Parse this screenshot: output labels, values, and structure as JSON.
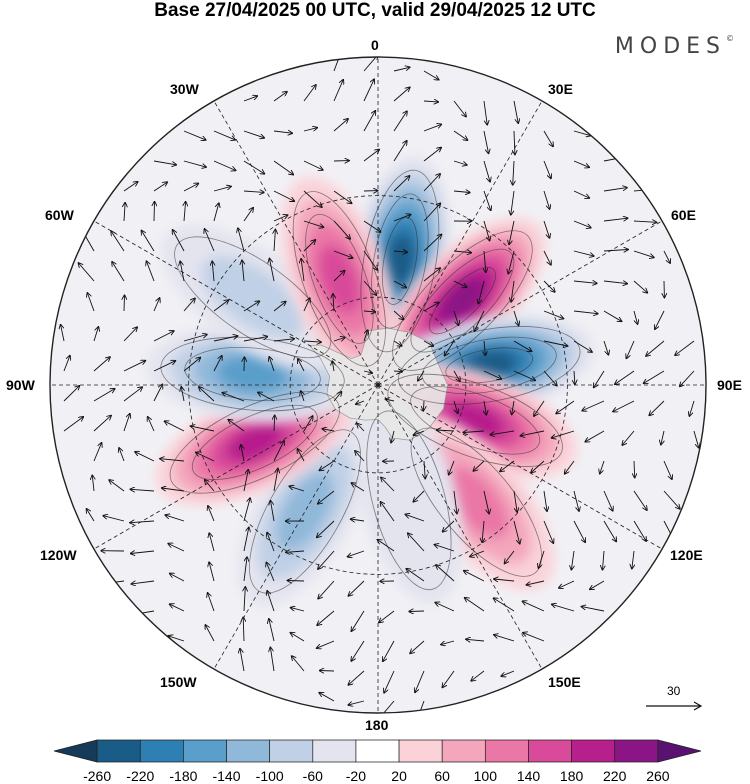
{
  "title": "Base 27/04/2025 00 UTC, valid 29/04/2025 12 UTC",
  "brand": {
    "name": "MODES",
    "mark": "©"
  },
  "longitude_labels": {
    "n0": "0",
    "e30": "30E",
    "e60": "60E",
    "e90": "90E",
    "e120": "120E",
    "e150": "150E",
    "s180": "180",
    "w150": "150W",
    "w120": "120W",
    "w90": "90W",
    "w60": "60W",
    "w30": "30W"
  },
  "reference_vector": {
    "label": "30"
  },
  "colorbar": {
    "ticks": [
      "-260",
      "-220",
      "-180",
      "-140",
      "-100",
      "-60",
      "-20",
      "20",
      "60",
      "100",
      "140",
      "180",
      "220",
      "260"
    ],
    "colors": [
      "#163a5a",
      "#1a5c88",
      "#2e7fb3",
      "#5a9ecb",
      "#8fb8d9",
      "#c0d0e6",
      "#e4e4ef",
      "#ffffff",
      "#fad2d8",
      "#f3a6bc",
      "#ea77a6",
      "#d94a9a",
      "#b71f8c",
      "#8c1585",
      "#5a1272"
    ]
  },
  "map": {
    "projection": "south polar stereographic",
    "land_color": "#e8e8e8",
    "anomaly_centers": [
      {
        "lon": 10,
        "lat": -48,
        "value": -240
      },
      {
        "lon": 45,
        "lat": -50,
        "value": 250
      },
      {
        "lon": 80,
        "lat": -52,
        "value": -250
      },
      {
        "lon": 110,
        "lat": -55,
        "value": 200
      },
      {
        "lon": 140,
        "lat": -40,
        "value": 150
      },
      {
        "lon": 165,
        "lat": -50,
        "value": -60
      },
      {
        "lon": -150,
        "lat": -42,
        "value": -130
      },
      {
        "lon": -115,
        "lat": -45,
        "value": 200
      },
      {
        "lon": -85,
        "lat": -48,
        "value": -180
      },
      {
        "lon": -55,
        "lat": -40,
        "value": -110
      },
      {
        "lon": -20,
        "lat": -52,
        "value": 190
      }
    ]
  }
}
